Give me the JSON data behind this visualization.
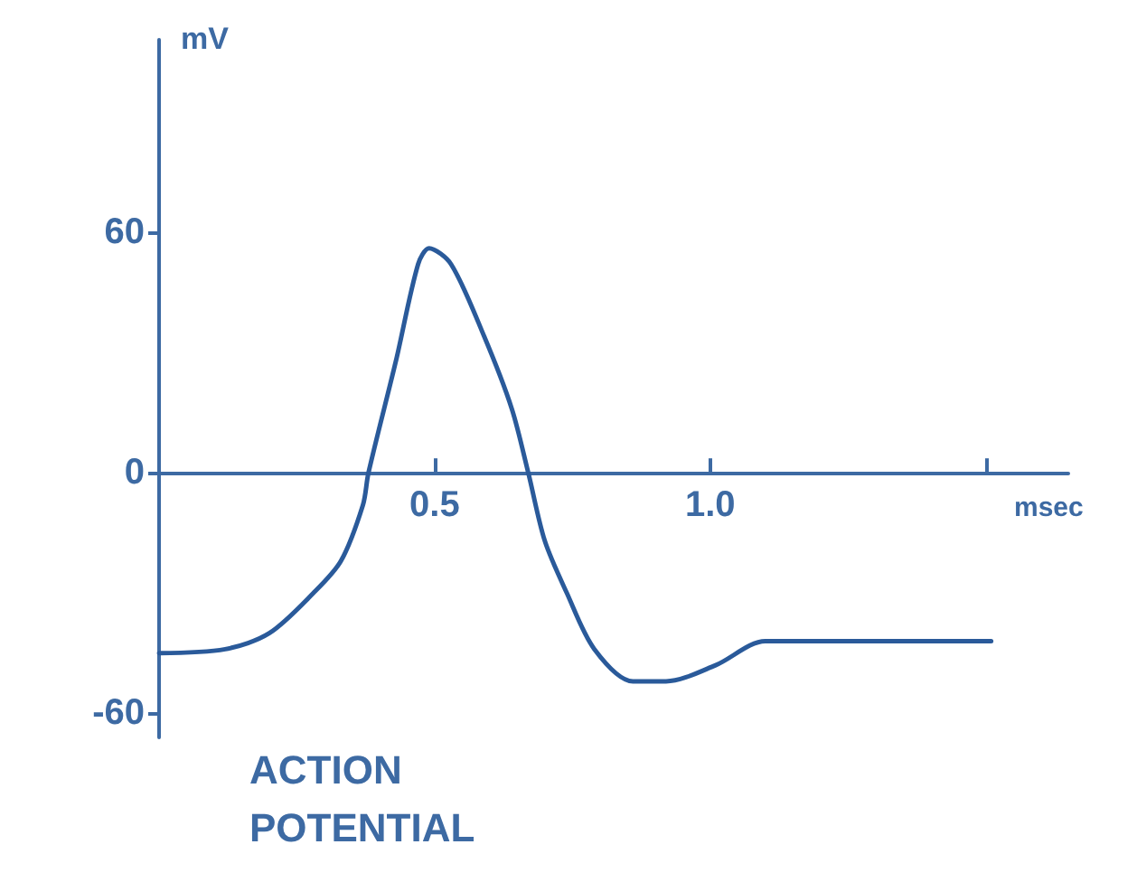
{
  "chart_data": {
    "type": "line",
    "xlabel": "msec",
    "ylabel": "mV",
    "x": [
      0,
      0.12,
      0.2,
      0.28,
      0.33,
      0.37,
      0.38,
      0.43,
      0.47,
      0.49,
      0.53,
      0.59,
      0.64,
      0.67,
      0.7,
      0.74,
      0.79,
      0.86,
      0.92,
      1.01,
      1.1,
      1.23,
      1.51
    ],
    "series": [
      {
        "color": "#2a5a9a",
        "values": [
          -45,
          -44,
          -40,
          -30,
          -22,
          -8,
          0,
          28,
          52,
          56,
          52,
          34,
          16,
          0,
          -17,
          -30,
          -44,
          -52,
          -52,
          -48,
          -42,
          -42,
          -42
        ]
      }
    ],
    "xlim": [
      0,
      1.65
    ],
    "xticks": [
      0.5,
      {
        "value": 1,
        "label": "1.0"
      },
      {
        "value": 1.5,
        "label": null
      }
    ],
    "ylim": [
      -66,
      108
    ],
    "yticks": [
      60,
      0,
      -60
    ],
    "annotations": [
      "ACTION\nPOTENTIAL"
    ],
    "grid": false,
    "marker": "none",
    "line_style": "solid"
  }
}
